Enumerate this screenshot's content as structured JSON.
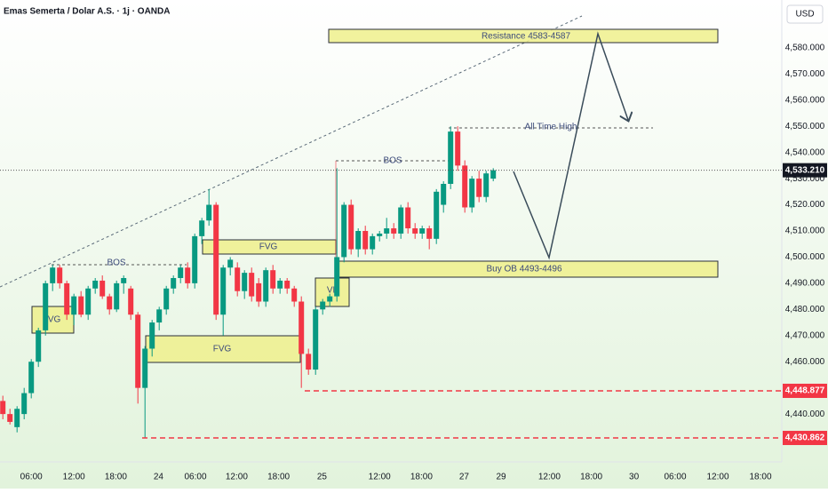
{
  "chart_data": {
    "type": "candlestick",
    "title": "Emas Semerta / Dolar A.S. · 1j · OANDA",
    "currency": "USD",
    "up_color": "#089981",
    "down_color": "#f23645",
    "ohlc": [
      [
        4445,
        4447,
        4438,
        4440
      ],
      [
        4440,
        4442,
        4436,
        4437
      ],
      [
        4435,
        4443,
        4433,
        4442
      ],
      [
        4440,
        4450,
        4438,
        4448
      ],
      [
        4448,
        4461,
        4446,
        4460
      ],
      [
        4460,
        4473,
        4458,
        4472
      ],
      [
        4472,
        4491,
        4470,
        4490
      ],
      [
        4490,
        4497,
        4487,
        4496
      ],
      [
        4496,
        4497,
        4488,
        4490
      ],
      [
        4490,
        4491,
        4476,
        4478
      ],
      [
        4478,
        4486,
        4474,
        4485
      ],
      [
        4485,
        4487,
        4477,
        4478
      ],
      [
        4478,
        4489,
        4476,
        4488
      ],
      [
        4488,
        4492,
        4486,
        4491
      ],
      [
        4491,
        4493,
        4484,
        4485
      ],
      [
        4485,
        4486,
        4478,
        4480
      ],
      [
        4480,
        4491,
        4479,
        4490
      ],
      [
        4490,
        4493,
        4486,
        4492
      ],
      [
        4488,
        4489,
        4476,
        4478
      ],
      [
        4478,
        4479,
        4444,
        4450
      ],
      [
        4450,
        4466,
        4431,
        4465
      ],
      [
        4465,
        4476,
        4462,
        4475
      ],
      [
        4475,
        4481,
        4472,
        4480
      ],
      [
        4480,
        4489,
        4478,
        4488
      ],
      [
        4488,
        4493,
        4486,
        4492
      ],
      [
        4492,
        4497,
        4490,
        4496
      ],
      [
        4496,
        4498,
        4488,
        4490
      ],
      [
        4490,
        4509,
        4488,
        4508
      ],
      [
        4508,
        4515,
        4505,
        4514
      ],
      [
        4514,
        4526,
        4512,
        4520
      ],
      [
        4520,
        4521,
        4476,
        4478
      ],
      [
        4478,
        4497,
        4470,
        4496
      ],
      [
        4496,
        4500,
        4493,
        4499
      ],
      [
        4496,
        4498,
        4485,
        4487
      ],
      [
        4487,
        4495,
        4484,
        4494
      ],
      [
        4494,
        4496,
        4483,
        4485
      ],
      [
        4490,
        4492,
        4481,
        4483
      ],
      [
        4483,
        4496,
        4481,
        4495
      ],
      [
        4495,
        4497,
        4486,
        4488
      ],
      [
        4488,
        4492,
        4486,
        4491
      ],
      [
        4491,
        4492,
        4486,
        4488
      ],
      [
        4488,
        4489,
        4481,
        4483
      ],
      [
        4483,
        4485,
        4450,
        4463
      ],
      [
        4463,
        4465,
        4455,
        4457
      ],
      [
        4457,
        4481,
        4455,
        4480
      ],
      [
        4480,
        4484,
        4478,
        4483
      ],
      [
        4483,
        4486,
        4481,
        4485
      ],
      [
        4485,
        4534,
        4483,
        4500
      ],
      [
        4500,
        4521,
        4498,
        4520
      ],
      [
        4520,
        4522,
        4501,
        4503
      ],
      [
        4503,
        4511,
        4500,
        4510
      ],
      [
        4510,
        4512,
        4501,
        4503
      ],
      [
        4503,
        4509,
        4501,
        4508
      ],
      [
        4508,
        4510,
        4506,
        4509
      ],
      [
        4509,
        4515,
        4507,
        4511
      ],
      [
        4511,
        4513,
        4507,
        4509
      ],
      [
        4509,
        4520,
        4507,
        4519
      ],
      [
        4519,
        4521,
        4509,
        4511
      ],
      [
        4511,
        4513,
        4507,
        4509
      ],
      [
        4509,
        4512,
        4507,
        4511
      ],
      [
        4511,
        4512,
        4503,
        4507
      ],
      [
        4507,
        4526,
        4505,
        4525
      ],
      [
        4520,
        4529,
        4517,
        4528
      ],
      [
        4528,
        4550,
        4526,
        4548
      ],
      [
        4548,
        4550,
        4533,
        4535
      ],
      [
        4535,
        4537,
        4517,
        4519
      ],
      [
        4519,
        4531,
        4517,
        4530
      ],
      [
        4530,
        4533,
        4521,
        4523
      ],
      [
        4523,
        4533,
        4521,
        4532
      ],
      [
        4530,
        4534,
        4529,
        4533.21
      ]
    ],
    "xlim": [
      -0.4,
      109.6
    ],
    "xticks": [
      {
        "value": 4,
        "label": "06:00"
      },
      {
        "value": 10,
        "label": "12:00"
      },
      {
        "value": 15.9,
        "label": "18:00"
      },
      {
        "value": 21.9,
        "label": "24"
      },
      {
        "value": 27.1,
        "label": "06:00"
      },
      {
        "value": 32.9,
        "label": "12:00"
      },
      {
        "value": 38.8,
        "label": "18:00"
      },
      {
        "value": 44.9,
        "label": "25"
      },
      {
        "value": 53,
        "label": "12:00"
      },
      {
        "value": 58.9,
        "label": "18:00"
      },
      {
        "value": 64.9,
        "label": "27"
      },
      {
        "value": 70.1,
        "label": "29"
      },
      {
        "value": 76.9,
        "label": "12:00"
      },
      {
        "value": 82.8,
        "label": "18:00"
      },
      {
        "value": 88.8,
        "label": "30"
      },
      {
        "value": 94.6,
        "label": "06:00"
      },
      {
        "value": 100.6,
        "label": "12:00"
      },
      {
        "value": 106.6,
        "label": "18:00"
      }
    ],
    "ylim": [
      4421.7,
      4598.3
    ],
    "yticks": [
      {
        "value": 4440,
        "label": "4,440.000"
      },
      {
        "value": 4450,
        "label": "4,450.000"
      },
      {
        "value": 4460,
        "label": "4,460.000"
      },
      {
        "value": 4470,
        "label": "4,470.000"
      },
      {
        "value": 4480,
        "label": "4,480.000"
      },
      {
        "value": 4490,
        "label": "4,490.000"
      },
      {
        "value": 4500,
        "label": "4,500.000"
      },
      {
        "value": 4510,
        "label": "4,510.000"
      },
      {
        "value": 4520,
        "label": "4,520.000"
      },
      {
        "value": 4530,
        "label": "4,530.000"
      },
      {
        "value": 4540,
        "label": "4,540.000"
      },
      {
        "value": 4550,
        "label": "4,550.000"
      },
      {
        "value": 4560,
        "label": "4,560.000"
      },
      {
        "value": 4570,
        "label": "4,570.000"
      },
      {
        "value": 4580,
        "label": "4,580.000"
      }
    ],
    "price_lines": [
      {
        "value": 4533.21,
        "label": "4,533.210",
        "color": "#131722"
      },
      {
        "value": 4448.877,
        "label": "4,448.877",
        "color": "#f23645"
      },
      {
        "value": 4430.862,
        "label": "4,430.862",
        "color": "#f23645"
      }
    ],
    "annotations": [
      "Resistance 4583-4587",
      "Buy OB 4493-4496",
      "FVG",
      "FVG",
      "FVG",
      "VL",
      "BOS",
      "BOS",
      "All Time High"
    ]
  }
}
